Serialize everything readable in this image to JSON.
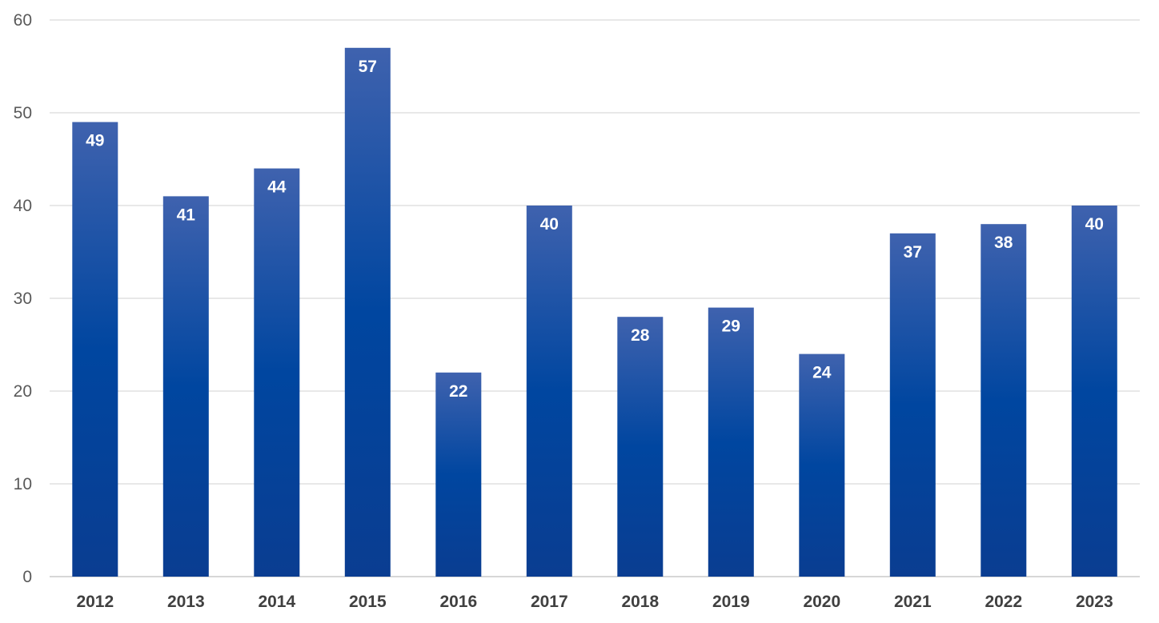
{
  "chart_data": {
    "type": "bar",
    "title": "",
    "xlabel": "",
    "ylabel": "",
    "categories": [
      "2012",
      "2013",
      "2014",
      "2015",
      "2016",
      "2017",
      "2018",
      "2019",
      "2020",
      "2021",
      "2022",
      "2023"
    ],
    "values": [
      49,
      41,
      44,
      57,
      22,
      40,
      28,
      29,
      24,
      37,
      38,
      40
    ],
    "ylim": [
      0,
      60
    ],
    "yticks": [
      0,
      10,
      20,
      30,
      40,
      50,
      60
    ],
    "grid": true,
    "legend": "none",
    "data_labels": "inside-top",
    "colors": {
      "bar_top": "#3F62AE",
      "bar_mid": "#0046A0",
      "bar_bottom": "#0A3D91",
      "data_label": "#FFFFFF"
    }
  }
}
